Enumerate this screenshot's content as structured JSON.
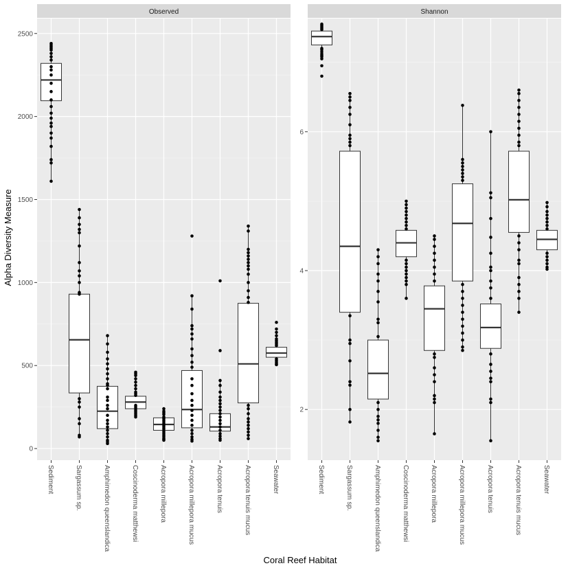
{
  "chart_data": {
    "type": "boxplot",
    "xlabel": "Coral Reef Habitat",
    "ylabel": "Alpha Diversity Measure",
    "categories": [
      "Sediment",
      "Sargassum sp.",
      "Amphimedon queenslandica",
      "Coscinoderma matthewsi",
      "Acropora millepora",
      "Acropora millepora mucus",
      "Acropora tenuis",
      "Acropora tenuis mucus",
      "Seawater"
    ],
    "panel_background": "#ebebeb",
    "strip_background": "#d9d9d9",
    "panels": [
      {
        "title": "Observed",
        "ylim": [
          -70,
          2590
        ],
        "yticks": [
          0,
          500,
          1000,
          1500,
          2000,
          2500
        ],
        "ytick_labels": [
          "0",
          "500",
          "1000",
          "1500",
          "2000",
          "2500"
        ],
        "boxes": [
          {
            "category": "Sediment",
            "q1": 2095,
            "median": 2220,
            "q3": 2320,
            "whisker_low": 1610,
            "whisker_high": 2440,
            "points": [
              2440,
              2430,
              2420,
              2410,
              2400,
              2380,
              2360,
              2340,
              2300,
              2280,
              2250,
              2200,
              2150,
              2100,
              2060,
              2020,
              1990,
              1960,
              1940,
              1900,
              1870,
              1820,
              1740,
              1720,
              1610
            ]
          },
          {
            "category": "Sargassum sp.",
            "q1": 335,
            "median": 655,
            "q3": 930,
            "whisker_low": 70,
            "whisker_high": 1440,
            "points": [
              1440,
              1390,
              1350,
              1320,
              1300,
              1220,
              1120,
              1070,
              1040,
              1000,
              940,
              930,
              300,
              280,
              250,
              180,
              150,
              80,
              70
            ]
          },
          {
            "category": "Amphimedon queenslandica",
            "q1": 120,
            "median": 225,
            "q3": 375,
            "whisker_low": 30,
            "whisker_high": 680,
            "points": [
              680,
              630,
              580,
              540,
              510,
              480,
              450,
              420,
              390,
              380,
              360,
              310,
              290,
              260,
              240,
              200,
              170,
              150,
              130,
              110,
              90,
              70,
              50,
              40,
              30
            ]
          },
          {
            "category": "Coscinoderma matthewsi",
            "q1": 240,
            "median": 280,
            "q3": 315,
            "whisker_low": 190,
            "whisker_high": 460,
            "points": [
              460,
              450,
              440,
              420,
              400,
              380,
              360,
              340,
              330,
              320,
              260,
              250,
              240,
              230,
              220,
              210,
              200,
              190
            ]
          },
          {
            "category": "Acropora millepora",
            "q1": 110,
            "median": 145,
            "q3": 185,
            "whisker_low": 50,
            "whisker_high": 240,
            "points": [
              240,
              225,
              215,
              205,
              190,
              180,
              170,
              160,
              150,
              140,
              130,
              120,
              110,
              100,
              90,
              80,
              70,
              60,
              55,
              50
            ]
          },
          {
            "category": "Acropora millepora mucus",
            "q1": 125,
            "median": 235,
            "q3": 470,
            "whisker_low": 45,
            "whisker_high": 920,
            "points": [
              1280,
              920,
              840,
              740,
              720,
              690,
              660,
              600,
              560,
              520,
              490,
              420,
              380,
              330,
              290,
              260,
              230,
              200,
              170,
              140,
              110,
              90,
              70,
              55,
              45
            ]
          },
          {
            "category": "Acropora tenuis",
            "q1": 105,
            "median": 130,
            "q3": 210,
            "whisker_low": 50,
            "whisker_high": 410,
            "points": [
              1010,
              590,
              410,
              380,
              340,
              310,
              290,
              270,
              250,
              230,
              210,
              190,
              170,
              150,
              130,
              110,
              90,
              75,
              60,
              50
            ]
          },
          {
            "category": "Acropora tenuis mucus",
            "q1": 275,
            "median": 510,
            "q3": 875,
            "whisker_low": 60,
            "whisker_high": 1340,
            "points": [
              1340,
              1310,
              1200,
              1180,
              1160,
              1140,
              1120,
              1100,
              1080,
              1050,
              1000,
              950,
              910,
              880,
              260,
              240,
              210,
              180,
              160,
              140,
              120,
              100,
              80,
              60
            ]
          },
          {
            "category": "Seawater",
            "q1": 550,
            "median": 575,
            "q3": 610,
            "whisker_low": 505,
            "whisker_high": 700,
            "points": [
              760,
              720,
              700,
              680,
              660,
              650,
              640,
              630,
              620,
              540,
              530,
              520,
              510,
              505
            ]
          }
        ]
      },
      {
        "title": "Shannon",
        "ylim": [
          1.27,
          7.63
        ],
        "yticks": [
          2,
          4,
          6
        ],
        "ytick_labels": [
          "2",
          "4",
          "6"
        ],
        "boxes": [
          {
            "category": "Sediment",
            "q1": 7.25,
            "median": 7.37,
            "q3": 7.45,
            "whisker_low": 7.05,
            "whisker_high": 7.55,
            "points": [
              7.55,
              7.53,
              7.51,
              7.49,
              7.47,
              7.2,
              7.18,
              7.15,
              7.12,
              7.1,
              7.08,
              7.05,
              6.95,
              6.8
            ]
          },
          {
            "category": "Sargassum sp.",
            "q1": 3.4,
            "median": 4.35,
            "q3": 5.72,
            "whisker_low": 1.82,
            "whisker_high": 6.55,
            "points": [
              6.55,
              6.5,
              6.45,
              6.35,
              6.25,
              6.1,
              5.95,
              5.9,
              5.85,
              5.8,
              3.35,
              3.0,
              2.95,
              2.7,
              2.4,
              2.35,
              2.0,
              1.82
            ]
          },
          {
            "category": "Amphimedon queenslandica",
            "q1": 2.15,
            "median": 2.52,
            "q3": 3.0,
            "whisker_low": 1.55,
            "whisker_high": 4.3,
            "points": [
              4.3,
              4.2,
              4.1,
              3.95,
              3.85,
              3.7,
              3.55,
              3.3,
              3.25,
              3.05,
              2.1,
              2.0,
              1.9,
              1.85,
              1.8,
              1.7,
              1.6,
              1.55
            ]
          },
          {
            "category": "Coscinoderma matthewsi",
            "q1": 4.2,
            "median": 4.4,
            "q3": 4.58,
            "whisker_low": 3.6,
            "whisker_high": 5.0,
            "points": [
              5.0,
              4.95,
              4.9,
              4.85,
              4.8,
              4.75,
              4.7,
              4.65,
              4.6,
              4.15,
              4.1,
              4.05,
              4.0,
              3.95,
              3.9,
              3.85,
              3.8,
              3.6
            ]
          },
          {
            "category": "Acropora millepora",
            "q1": 2.85,
            "median": 3.45,
            "q3": 3.78,
            "whisker_low": 1.65,
            "whisker_high": 4.5,
            "points": [
              4.5,
              4.45,
              4.35,
              4.25,
              4.15,
              4.05,
              3.95,
              3.85,
              2.8,
              2.75,
              2.6,
              2.5,
              2.4,
              2.2,
              2.15,
              2.1,
              1.65
            ]
          },
          {
            "category": "Acropora millepora mucus",
            "q1": 3.85,
            "median": 4.68,
            "q3": 5.25,
            "whisker_low": 2.85,
            "whisker_high": 6.38,
            "points": [
              6.38,
              5.6,
              5.55,
              5.5,
              5.45,
              5.4,
              5.35,
              5.3,
              3.8,
              3.7,
              3.6,
              3.5,
              3.4,
              3.3,
              3.2,
              3.1,
              3.0,
              2.9,
              2.85
            ]
          },
          {
            "category": "Acropora tenuis",
            "q1": 2.88,
            "median": 3.18,
            "q3": 3.52,
            "whisker_low": 1.55,
            "whisker_high": 6.0,
            "points": [
              6.0,
              5.12,
              5.05,
              4.75,
              4.48,
              4.25,
              4.05,
              4.0,
              3.85,
              3.75,
              3.6,
              2.8,
              2.65,
              2.55,
              2.45,
              2.4,
              2.15,
              2.1,
              1.55
            ]
          },
          {
            "category": "Acropora tenuis mucus",
            "q1": 4.55,
            "median": 5.02,
            "q3": 5.72,
            "whisker_low": 3.4,
            "whisker_high": 6.6,
            "points": [
              6.6,
              6.55,
              6.45,
              6.35,
              6.25,
              6.15,
              6.05,
              5.95,
              5.85,
              5.8,
              4.5,
              4.4,
              4.3,
              4.15,
              4.1,
              3.9,
              3.8,
              3.7,
              3.6,
              3.4
            ]
          },
          {
            "category": "Seawater",
            "q1": 4.3,
            "median": 4.45,
            "q3": 4.58,
            "whisker_low": 4.02,
            "whisker_high": 4.98,
            "points": [
              4.98,
              4.92,
              4.85,
              4.8,
              4.75,
              4.7,
              4.65,
              4.6,
              4.25,
              4.2,
              4.15,
              4.1,
              4.05,
              4.02
            ]
          }
        ]
      }
    ]
  }
}
